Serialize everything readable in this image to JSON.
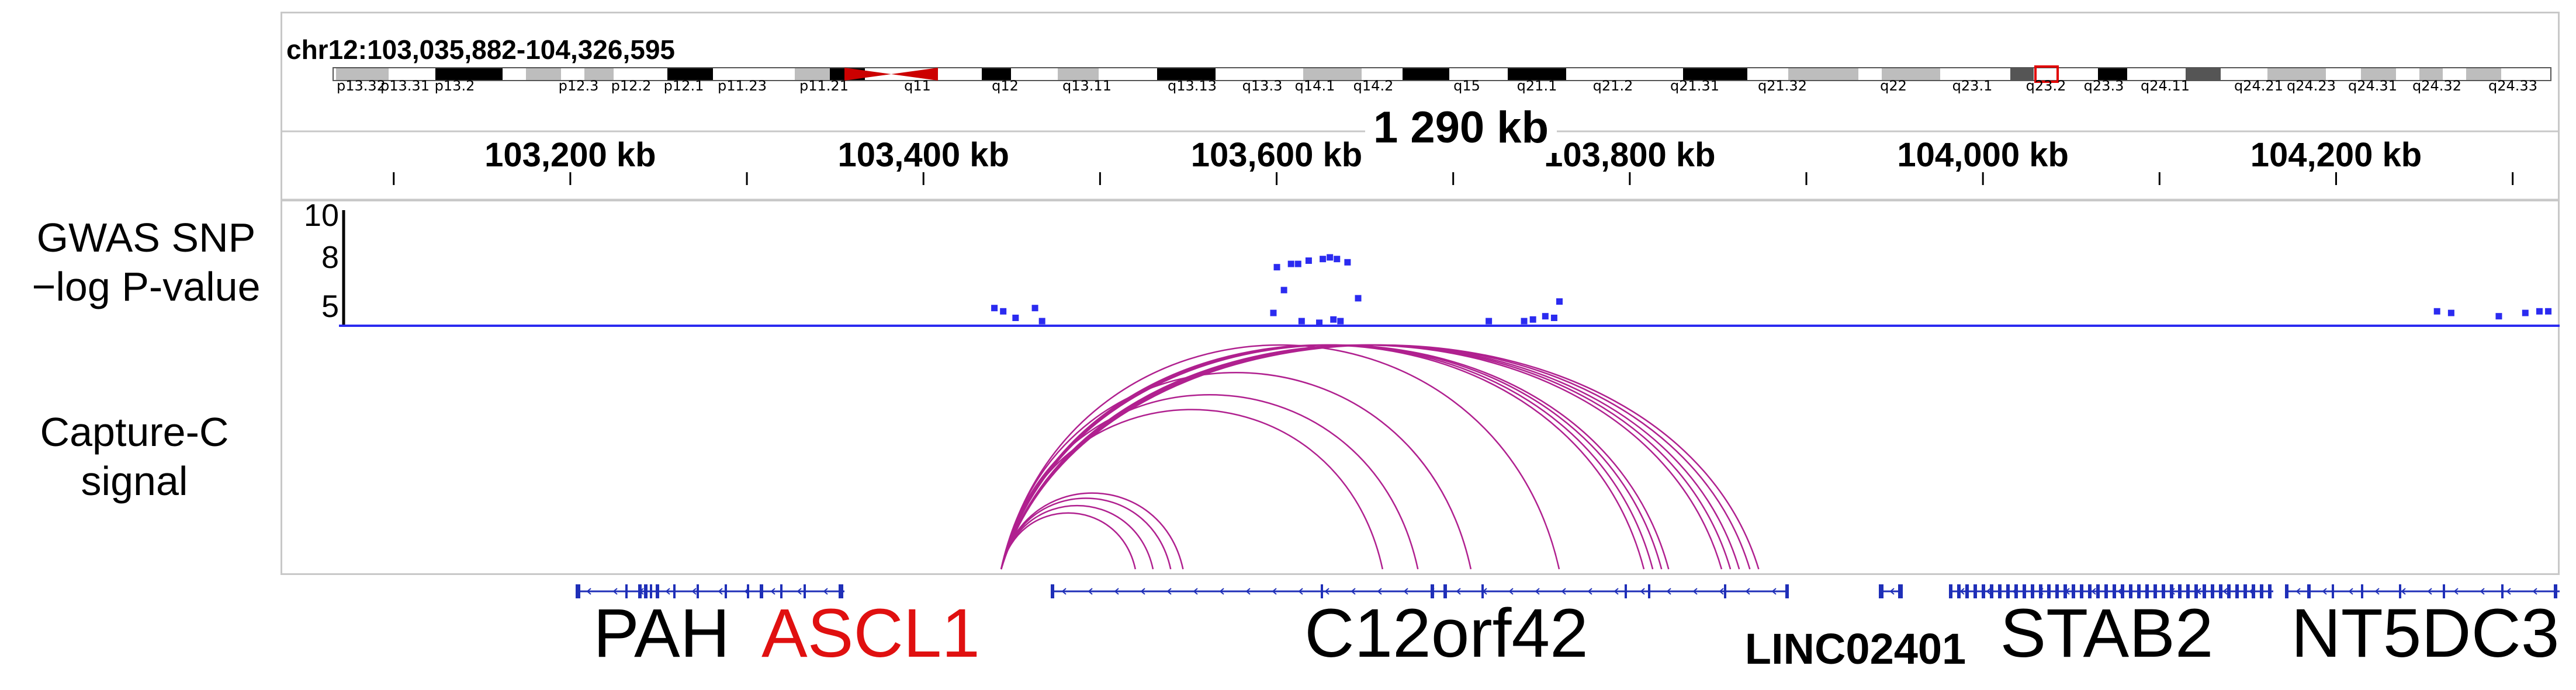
{
  "locus": "chr12:103,035,882-104,326,595",
  "span_label": "1 290 kb",
  "ruler_ticks": [
    "103,200 kb",
    "103,400 kb",
    "103,600 kb",
    "103,800 kb",
    "104,000 kb",
    "104,200 kb"
  ],
  "cytobands": [
    "p13.32",
    "p13.31",
    "p13.2",
    "p12.3",
    "p12.2",
    "p12.1",
    "p11.23",
    "p11.21",
    "q11",
    "q12",
    "q13.11",
    "q13.13",
    "q13.3",
    "q14.1",
    "q14.2",
    "q15",
    "q21.1",
    "q21.2",
    "q21.31",
    "q21.32",
    "q22",
    "q23.1",
    "q23.2",
    "q23.3",
    "q24.11",
    "q24.21",
    "q24.23",
    "q24.31",
    "q24.32",
    "q24.33"
  ],
  "tracks": {
    "gwas": {
      "label_line1": "GWAS SNP",
      "label_line2": "−log P-value",
      "y_ticks": [
        "10",
        "8",
        "5"
      ],
      "color": "#2b2bf0"
    },
    "capturec": {
      "label_line1": "Capture-C",
      "label_line2": "signal",
      "color": "#b0208f"
    }
  },
  "genes": {
    "pah": "PAH",
    "ascl1": "ASCL1",
    "c12orf42": "C12orf42",
    "linc02401": "LINC02401",
    "stab2": "STAB2",
    "nt5dc3": "NT5DC3",
    "gene_color": "#1f2fb8",
    "highlight_color": "#e01010"
  },
  "gwas_points_log10p": [
    {
      "kb": 103440,
      "p": 4.9
    },
    {
      "kb": 103445,
      "p": 4.7
    },
    {
      "kb": 103452,
      "p": 4.3
    },
    {
      "kb": 103463,
      "p": 4.9
    },
    {
      "kb": 103467,
      "p": 4.1
    },
    {
      "kb": 103600,
      "p": 7.4
    },
    {
      "kb": 103604,
      "p": 6.0
    },
    {
      "kb": 103608,
      "p": 7.6
    },
    {
      "kb": 103612,
      "p": 7.6
    },
    {
      "kb": 103618,
      "p": 7.8
    },
    {
      "kb": 103626,
      "p": 7.9
    },
    {
      "kb": 103630,
      "p": 8.0
    },
    {
      "kb": 103634,
      "p": 7.9
    },
    {
      "kb": 103640,
      "p": 7.7
    },
    {
      "kb": 103646,
      "p": 5.5
    },
    {
      "kb": 103598,
      "p": 4.6
    },
    {
      "kb": 103614,
      "p": 4.1
    },
    {
      "kb": 103632,
      "p": 4.2
    },
    {
      "kb": 103636,
      "p": 4.1
    },
    {
      "kb": 103624,
      "p": 4.0
    },
    {
      "kb": 103720,
      "p": 4.1
    },
    {
      "kb": 103740,
      "p": 4.1
    },
    {
      "kb": 103745,
      "p": 4.2
    },
    {
      "kb": 103752,
      "p": 4.4
    },
    {
      "kb": 103757,
      "p": 4.3
    },
    {
      "kb": 103760,
      "p": 5.3
    },
    {
      "kb": 104257,
      "p": 4.7
    },
    {
      "kb": 104265,
      "p": 4.6
    },
    {
      "kb": 104292,
      "p": 4.4
    },
    {
      "kb": 104307,
      "p": 4.6
    },
    {
      "kb": 104315,
      "p": 4.7
    },
    {
      "kb": 104320,
      "p": 4.7
    }
  ],
  "capture_c_arcs_kb": [
    [
      103444,
      103540
    ],
    [
      103444,
      103530
    ],
    [
      103444,
      103547
    ],
    [
      103444,
      103520
    ],
    [
      103444,
      103660
    ],
    [
      103444,
      103680
    ],
    [
      103444,
      103710
    ],
    [
      103444,
      103760
    ],
    [
      103444,
      103808
    ],
    [
      103444,
      103813
    ],
    [
      103444,
      103818
    ],
    [
      103444,
      103822
    ],
    [
      103444,
      103852
    ],
    [
      103444,
      103857
    ],
    [
      103444,
      103862
    ],
    [
      103444,
      103868
    ],
    [
      103444,
      103873
    ]
  ]
}
